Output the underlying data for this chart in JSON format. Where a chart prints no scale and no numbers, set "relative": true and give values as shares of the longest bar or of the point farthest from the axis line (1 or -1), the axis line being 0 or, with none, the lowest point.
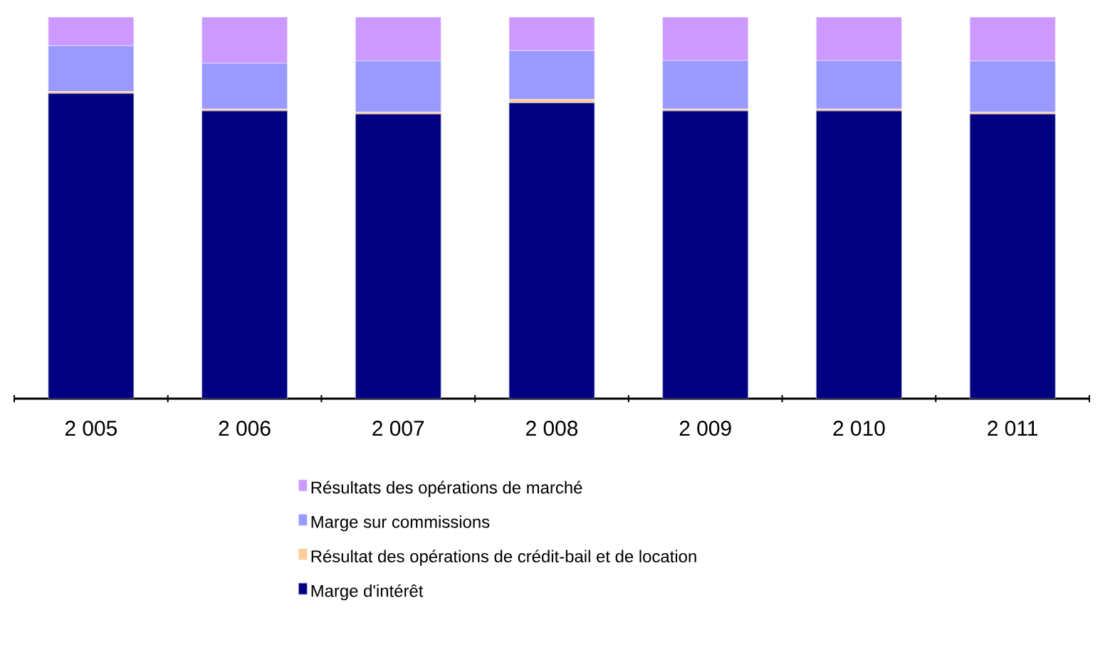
{
  "chart_data": {
    "type": "bar",
    "stacked": true,
    "relative": true,
    "legend": "bottom",
    "categories": [
      "2 005",
      "2 006",
      "2 007",
      "2 008",
      "2 009",
      "2 010",
      "2 011"
    ],
    "series": [
      {
        "name": "Marge d'intérêt",
        "color": "#000080",
        "values": [
          0.8,
          0.754,
          0.746,
          0.775,
          0.754,
          0.754,
          0.746
        ]
      },
      {
        "name": "Résultat des opérations de crédit-bail et de location",
        "color": "#ffcc99",
        "values": [
          0.005,
          0.005,
          0.005,
          0.009,
          0.005,
          0.005,
          0.005
        ]
      },
      {
        "name": "Marge sur commissions",
        "color": "#9999ff",
        "values": [
          0.12,
          0.12,
          0.134,
          0.128,
          0.127,
          0.127,
          0.134
        ]
      },
      {
        "name": "Résultats des opérations de marché",
        "color": "#cc99ff",
        "values": [
          0.075,
          0.121,
          0.115,
          0.088,
          0.114,
          0.114,
          0.115
        ]
      }
    ]
  }
}
